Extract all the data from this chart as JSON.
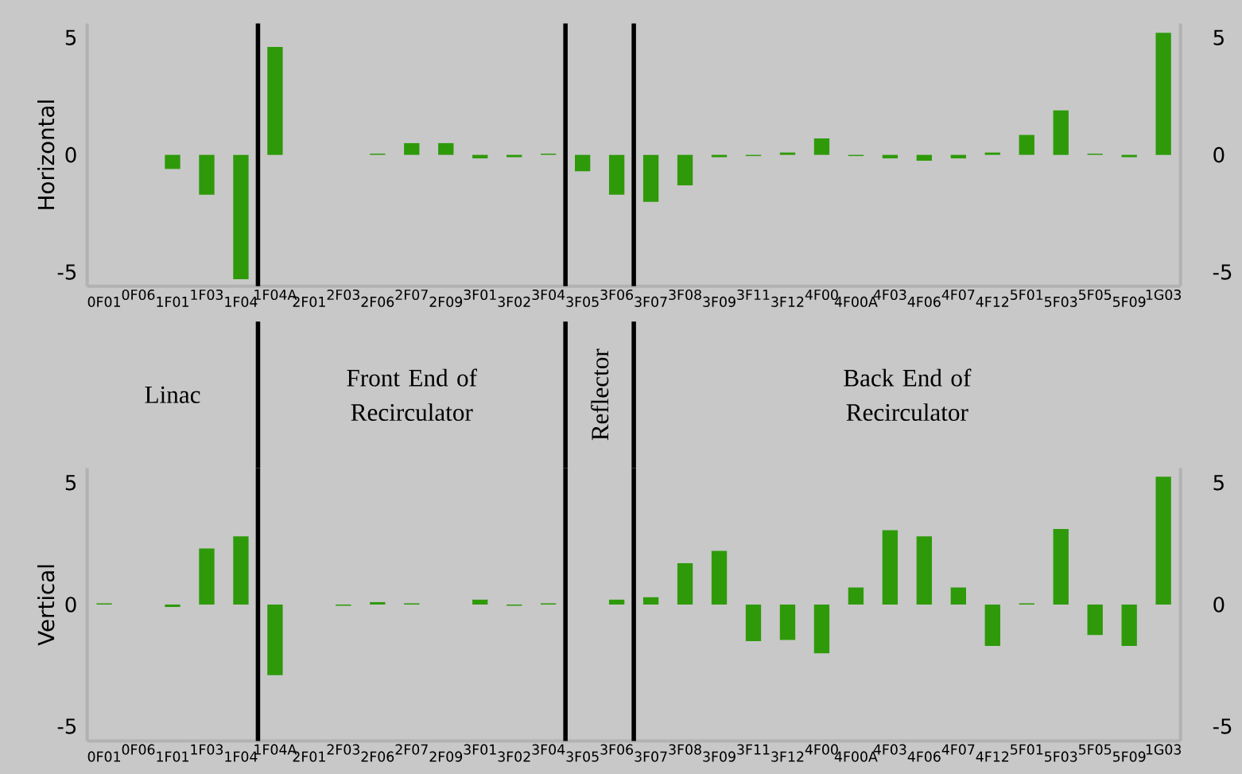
{
  "chart_data": [
    {
      "type": "bar",
      "ylabel": "Horizontal",
      "color": "#2e9a0a",
      "categories": [
        "0F01",
        "0F06",
        "1F01",
        "1F03",
        "1F04",
        "1F04A",
        "2F01",
        "2F03",
        "2F06",
        "2F07",
        "2F09",
        "3F01",
        "3F02",
        "3F04",
        "3F05",
        "3F06",
        "3F07",
        "3F08",
        "3F09",
        "3F11",
        "3F12",
        "4F00",
        "4F00A",
        "4F03",
        "4F06",
        "4F07",
        "4F12",
        "5F01",
        "5F03",
        "5F05",
        "5F09",
        "1G03"
      ],
      "values": [
        0,
        0,
        -0.6,
        -1.7,
        -5.3,
        4.6,
        0,
        0,
        0.05,
        0.5,
        0.5,
        -0.15,
        -0.1,
        0.05,
        -0.7,
        -1.7,
        -2.0,
        -1.3,
        -0.1,
        -0.05,
        0.1,
        0.7,
        -0.05,
        -0.15,
        -0.25,
        -0.15,
        0.1,
        0.85,
        1.9,
        0.05,
        -0.1,
        5.2
      ],
      "ylim": [
        -5.6,
        5.6
      ],
      "yticks": [
        -5,
        0,
        5
      ],
      "y2lim": [
        -5.6,
        5.6
      ],
      "y2ticks": [
        -5,
        0,
        5
      ],
      "annotations": [
        "Linac",
        "Front End of Recirculator",
        "Reflector",
        "Back End of Recirculator"
      ]
    },
    {
      "type": "bar",
      "ylabel": "Vertical",
      "color": "#2e9a0a",
      "categories": [
        "0F01",
        "0F06",
        "1F01",
        "1F03",
        "1F04",
        "1F04A",
        "2F01",
        "2F03",
        "2F06",
        "2F07",
        "2F09",
        "3F01",
        "3F02",
        "3F04",
        "3F05",
        "3F06",
        "3F07",
        "3F08",
        "3F09",
        "3F11",
        "3F12",
        "4F00",
        "4F00A",
        "4F03",
        "4F06",
        "4F07",
        "4F12",
        "5F01",
        "5F03",
        "5F05",
        "5F09",
        "1G03"
      ],
      "values": [
        0.05,
        0,
        -0.1,
        2.3,
        2.8,
        -2.9,
        0,
        -0.05,
        0.1,
        0.05,
        0,
        0.2,
        -0.05,
        0.05,
        0,
        0.2,
        0.3,
        1.7,
        2.2,
        -1.5,
        -1.45,
        -2.0,
        0.7,
        3.05,
        2.8,
        0.7,
        -1.7,
        0.05,
        3.1,
        -1.25,
        -1.7,
        5.25
      ],
      "ylim": [
        -5.6,
        5.6
      ],
      "yticks": [
        -5,
        0,
        5
      ],
      "y2lim": [
        -5.6,
        5.6
      ],
      "y2ticks": [
        -5,
        0,
        5
      ]
    }
  ]
}
